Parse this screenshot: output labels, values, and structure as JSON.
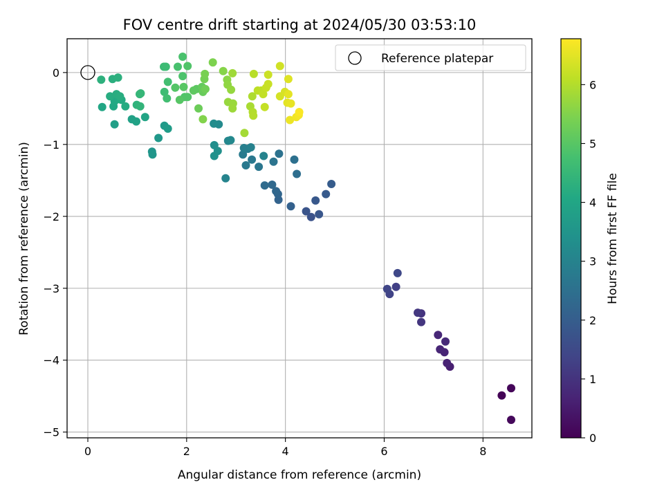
{
  "chart_data": {
    "type": "scatter",
    "title": "FOV centre drift starting at 2024/05/30 03:53:10",
    "xlabel": "Angular distance from reference (arcmin)",
    "ylabel": "Rotation from reference (arcmin)",
    "xlim": [
      -0.42,
      8.99
    ],
    "ylim": [
      -5.08,
      0.47
    ],
    "xticks": [
      0,
      2,
      4,
      6,
      8
    ],
    "yticks": [
      0,
      -1,
      -2,
      -3,
      -4,
      -5
    ],
    "xtick_labels": [
      "0",
      "2",
      "4",
      "6",
      "8"
    ],
    "ytick_labels": [
      "0",
      "−1",
      "−2",
      "−3",
      "−4",
      "−5"
    ],
    "grid": true,
    "colormap": "viridis",
    "colorbar": {
      "label": "Hours from first FF file",
      "range": [
        0,
        6.78
      ],
      "ticks": [
        0,
        1,
        2,
        3,
        4,
        5,
        6
      ],
      "tick_labels": [
        "0",
        "1",
        "2",
        "3",
        "4",
        "5",
        "6"
      ]
    },
    "reference": {
      "x": 0,
      "y": 0,
      "label": "Reference platepar"
    },
    "legend_position": "top-right",
    "points": [
      [
        8.38,
        -4.49,
        0.05
      ],
      [
        8.57,
        -4.39,
        0.1
      ],
      [
        8.57,
        -4.83,
        0.15
      ],
      [
        7.33,
        -4.09,
        0.6
      ],
      [
        7.27,
        -4.04,
        0.65
      ],
      [
        7.22,
        -3.89,
        0.7
      ],
      [
        7.13,
        -3.85,
        0.72
      ],
      [
        7.09,
        -3.65,
        0.75
      ],
      [
        7.24,
        -3.74,
        0.8
      ],
      [
        6.75,
        -3.35,
        1.0
      ],
      [
        6.75,
        -3.47,
        1.05
      ],
      [
        6.68,
        -3.34,
        1.1
      ],
      [
        6.24,
        -2.98,
        1.3
      ],
      [
        6.11,
        -3.08,
        1.35
      ],
      [
        6.06,
        -3.01,
        1.4
      ],
      [
        6.27,
        -2.79,
        1.45
      ],
      [
        4.52,
        -2.01,
        1.7
      ],
      [
        4.42,
        -1.93,
        1.75
      ],
      [
        4.68,
        -1.97,
        1.8
      ],
      [
        4.61,
        -1.78,
        1.85
      ],
      [
        4.82,
        -1.69,
        1.9
      ],
      [
        4.93,
        -1.55,
        1.95
      ],
      [
        4.11,
        -1.86,
        2.1
      ],
      [
        3.86,
        -1.77,
        2.15
      ],
      [
        3.85,
        -1.69,
        2.2
      ],
      [
        3.81,
        -1.65,
        2.25
      ],
      [
        3.73,
        -1.56,
        2.3
      ],
      [
        3.58,
        -1.57,
        2.35
      ],
      [
        4.23,
        -1.41,
        2.45
      ],
      [
        4.18,
        -1.21,
        2.5
      ],
      [
        3.87,
        -1.13,
        2.55
      ],
      [
        3.76,
        -1.24,
        2.6
      ],
      [
        3.46,
        -1.31,
        2.65
      ],
      [
        3.32,
        -1.21,
        2.7
      ],
      [
        3.2,
        -1.29,
        2.75
      ],
      [
        3.14,
        -1.14,
        2.8
      ],
      [
        3.24,
        -1.06,
        2.85
      ],
      [
        3.16,
        -1.05,
        2.9
      ],
      [
        3.3,
        -1.04,
        2.95
      ],
      [
        3.56,
        -1.16,
        3.0
      ],
      [
        2.79,
        -1.47,
        3.05
      ],
      [
        2.84,
        -0.95,
        3.1
      ],
      [
        2.89,
        -0.94,
        3.15
      ],
      [
        2.65,
        -0.72,
        3.2
      ],
      [
        2.55,
        -0.71,
        3.25
      ],
      [
        2.56,
        -1.01,
        3.3
      ],
      [
        2.63,
        -1.09,
        3.35
      ],
      [
        2.56,
        -1.16,
        3.4
      ],
      [
        1.3,
        -1.1,
        3.5
      ],
      [
        1.31,
        -1.14,
        3.55
      ],
      [
        1.43,
        -0.91,
        3.6
      ],
      [
        1.55,
        -0.74,
        3.65
      ],
      [
        1.62,
        -0.78,
        3.7
      ],
      [
        0.54,
        -0.72,
        3.8
      ],
      [
        0.89,
        -0.65,
        3.85
      ],
      [
        0.98,
        -0.68,
        3.9
      ],
      [
        1.16,
        -0.62,
        3.95
      ],
      [
        0.29,
        -0.48,
        4.0
      ],
      [
        0.52,
        -0.47,
        4.05
      ],
      [
        0.54,
        -0.4,
        4.08
      ],
      [
        0.62,
        -0.37,
        4.1
      ],
      [
        0.68,
        -0.38,
        4.12
      ],
      [
        0.76,
        -0.47,
        4.15
      ],
      [
        0.45,
        -0.33,
        4.18
      ],
      [
        0.58,
        -0.3,
        4.2
      ],
      [
        0.65,
        -0.33,
        4.22
      ],
      [
        0.5,
        -0.09,
        4.25
      ],
      [
        0.61,
        -0.07,
        4.28
      ],
      [
        0.27,
        -0.1,
        4.3
      ],
      [
        0.99,
        -0.45,
        4.35
      ],
      [
        1.06,
        -0.47,
        4.4
      ],
      [
        1.05,
        -0.3,
        4.45
      ],
      [
        1.07,
        -0.29,
        4.48
      ],
      [
        1.54,
        0.08,
        4.6
      ],
      [
        1.58,
        0.08,
        4.62
      ],
      [
        1.55,
        -0.27,
        4.65
      ],
      [
        1.6,
        -0.36,
        4.7
      ],
      [
        1.62,
        -0.13,
        4.72
      ],
      [
        1.82,
        0.08,
        4.8
      ],
      [
        1.92,
        0.22,
        4.82
      ],
      [
        1.92,
        -0.05,
        4.85
      ],
      [
        1.96,
        -0.34,
        4.88
      ],
      [
        2.02,
        0.09,
        4.9
      ],
      [
        2.02,
        -0.34,
        4.92
      ],
      [
        1.77,
        -0.21,
        4.95
      ],
      [
        1.86,
        -0.38,
        4.98
      ],
      [
        1.94,
        -0.2,
        5.0
      ],
      [
        2.2,
        -0.23,
        5.05
      ],
      [
        2.14,
        -0.25,
        5.08
      ],
      [
        2.31,
        -0.2,
        5.15
      ],
      [
        2.33,
        -0.27,
        5.2
      ],
      [
        2.24,
        -0.5,
        5.25
      ],
      [
        2.38,
        -0.23,
        5.3
      ],
      [
        2.36,
        -0.09,
        5.35
      ],
      [
        2.37,
        -0.02,
        5.4
      ],
      [
        2.53,
        0.14,
        5.45
      ],
      [
        2.33,
        -0.65,
        5.5
      ],
      [
        2.74,
        0.02,
        5.55
      ],
      [
        2.82,
        -0.1,
        5.6
      ],
      [
        2.83,
        -0.17,
        5.65
      ],
      [
        2.9,
        -0.24,
        5.7
      ],
      [
        2.84,
        -0.41,
        5.72
      ],
      [
        2.94,
        -0.43,
        5.75
      ],
      [
        2.93,
        -0.5,
        5.78
      ],
      [
        2.93,
        -0.01,
        5.8
      ],
      [
        3.17,
        -0.84,
        5.85
      ],
      [
        3.29,
        -0.47,
        5.9
      ],
      [
        3.33,
        -0.33,
        5.95
      ],
      [
        3.34,
        -0.55,
        6.0
      ],
      [
        3.35,
        -0.6,
        6.02
      ],
      [
        3.36,
        -0.02,
        6.05
      ],
      [
        3.44,
        -0.25,
        6.1
      ],
      [
        3.51,
        -0.25,
        6.12
      ],
      [
        3.55,
        -0.3,
        6.15
      ],
      [
        3.58,
        -0.48,
        6.18
      ],
      [
        3.61,
        -0.21,
        6.2
      ],
      [
        3.65,
        -0.16,
        6.22
      ],
      [
        3.65,
        -0.03,
        6.25
      ],
      [
        3.89,
        0.09,
        6.3
      ],
      [
        3.89,
        -0.33,
        6.35
      ],
      [
        3.99,
        -0.27,
        6.38
      ],
      [
        4.06,
        -0.09,
        6.45
      ],
      [
        4.04,
        -0.42,
        6.5
      ],
      [
        4.06,
        -0.3,
        6.52
      ],
      [
        4.11,
        -0.43,
        6.55
      ],
      [
        4.09,
        -0.66,
        6.6
      ],
      [
        4.22,
        -0.62,
        6.65
      ],
      [
        4.27,
        -0.59,
        6.7
      ],
      [
        4.28,
        -0.55,
        6.75
      ]
    ]
  }
}
